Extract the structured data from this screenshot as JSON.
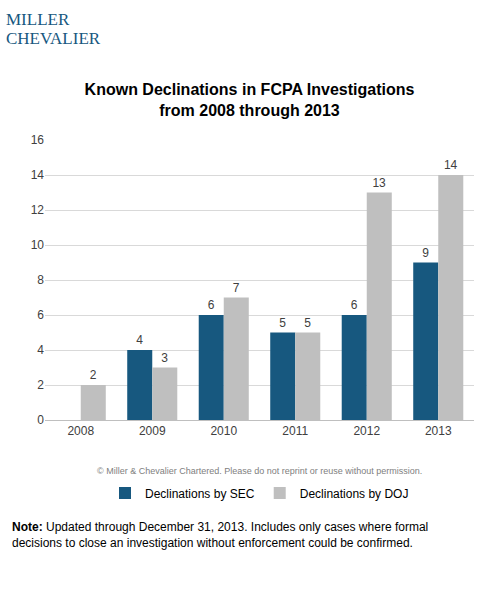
{
  "chart_data": {
    "type": "bar",
    "title": "Known Declinations in FCPA Investigations\nfrom 2008 through 2013",
    "categories": [
      "2008",
      "2009",
      "2010",
      "2011",
      "2012",
      "2013"
    ],
    "series": [
      {
        "name": "Declinations by SEC",
        "color": "#17587f",
        "values": [
          null,
          4,
          6,
          5,
          6,
          9
        ]
      },
      {
        "name": "Declinations by DOJ",
        "color": "#bfbfbf",
        "values": [
          2,
          3,
          7,
          5,
          13,
          14
        ]
      }
    ],
    "ylim": [
      0,
      16
    ],
    "yticks": [
      0,
      2,
      4,
      6,
      8,
      10,
      12,
      14,
      16
    ],
    "grid": true,
    "legend": "bottom",
    "data_labels": true,
    "annotations": [
      "MILLER",
      "CHEVALIER",
      "© Miller & Chevalier Chartered. Please do not reprint or reuse without permission.",
      "Note: Updated through December 31, 2013. Includes only cases where formal\ndecisions to close an investigation without enforcement could be confirmed."
    ]
  }
}
